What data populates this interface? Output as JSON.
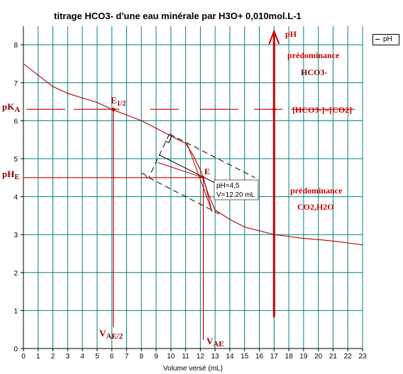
{
  "chart_data": {
    "type": "line",
    "title": "titrage HCO3- d'une eau minérale par H3O+ 0,010mol.L-1",
    "xlabel": "Volume versé (mL)",
    "ylabel": "",
    "xlim": [
      0,
      23
    ],
    "ylim": [
      0,
      8.6
    ],
    "xticks": [
      "0",
      "1",
      "2",
      "3",
      "4",
      "5",
      "6",
      "7",
      "8",
      "9",
      "10",
      "11",
      "12",
      "13",
      "14",
      "15",
      "16",
      "17",
      "18",
      "19",
      "20",
      "21",
      "22",
      "23"
    ],
    "yticks": [
      "0",
      "1",
      "2",
      "3",
      "4",
      "5",
      "6",
      "7",
      "8"
    ],
    "grid": true,
    "legend": "top-right",
    "series": [
      {
        "name": "pH",
        "color": "#b30000",
        "x": [
          0,
          1,
          2,
          3,
          4,
          5,
          6,
          7,
          8,
          9,
          10,
          10.5,
          11,
          11.5,
          12,
          12.2,
          12.5,
          13,
          14,
          15,
          16,
          17,
          18,
          19,
          20,
          21,
          22,
          23
        ],
        "y": [
          7.5,
          7.2,
          6.9,
          6.72,
          6.6,
          6.48,
          6.3,
          6.15,
          6.0,
          5.8,
          5.6,
          5.5,
          5.4,
          5.1,
          4.7,
          4.5,
          4.1,
          3.65,
          3.4,
          3.2,
          3.1,
          3.0,
          2.95,
          2.9,
          2.87,
          2.83,
          2.78,
          2.73
        ]
      }
    ],
    "annotations": {
      "half_point_label": "E",
      "half_point_sub": "1/2",
      "equivalence_label": "E",
      "tooltip_line1": "pH=4,5",
      "tooltip_line2": "V=12,20 mL",
      "pka_main": "pK",
      "pka_sub": "A",
      "phe_main": "pH",
      "phe_sub": "E",
      "vae2_main": "V",
      "vae2_sub": "AE/2",
      "vae_main": "V",
      "vae_sub": "AE",
      "ph_axis_label": "pH",
      "pred_top_1": "prédominance",
      "pred_top_2": "HCO3-",
      "equality": "[HCO3-]=[CO2]",
      "pred_bot_1": "prédominance",
      "pred_bot_2": "CO2,H2O"
    },
    "markers": {
      "pka": 6.3,
      "phe": 4.5,
      "v_half": 6.1,
      "v_eq": 12.2,
      "ph_arrow_x": 17
    },
    "legend_entry": "pH",
    "colors": {
      "grid": "#008080",
      "curve": "#b30000",
      "marker": "#cc0000",
      "construct": "#000000"
    }
  }
}
